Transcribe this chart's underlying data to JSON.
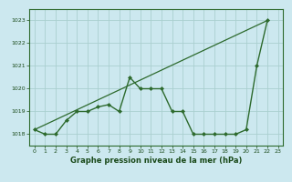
{
  "x": [
    0,
    1,
    2,
    3,
    4,
    5,
    6,
    7,
    8,
    9,
    10,
    11,
    12,
    13,
    14,
    15,
    16,
    17,
    18,
    19,
    20,
    21,
    22
  ],
  "y": [
    1018.2,
    1018.0,
    1018.0,
    1018.6,
    1019.0,
    1019.0,
    1019.2,
    1019.3,
    1019.0,
    1020.5,
    1020.0,
    1020.0,
    1020.0,
    1019.0,
    1019.0,
    1018.0,
    1018.0,
    1018.0,
    1018.0,
    1018.0,
    1018.2,
    1021.0,
    1023.0
  ],
  "line_color": "#2d6a2d",
  "marker_color": "#2d6a2d",
  "bg_color": "#cce8ef",
  "grid_color": "#aacfcf",
  "title": "Graphe pression niveau de la mer (hPa)",
  "tick_color": "#1a4a1a",
  "ylim": [
    1017.5,
    1023.5
  ],
  "xlim": [
    -0.5,
    23.5
  ],
  "yticks": [
    1018,
    1019,
    1020,
    1021,
    1022,
    1023
  ],
  "xticks": [
    0,
    1,
    2,
    3,
    4,
    5,
    6,
    7,
    8,
    9,
    10,
    11,
    12,
    13,
    14,
    15,
    16,
    17,
    18,
    19,
    20,
    21,
    22,
    23
  ],
  "trend_x": [
    0,
    22
  ],
  "trend_y": [
    1018.2,
    1023.0
  ]
}
